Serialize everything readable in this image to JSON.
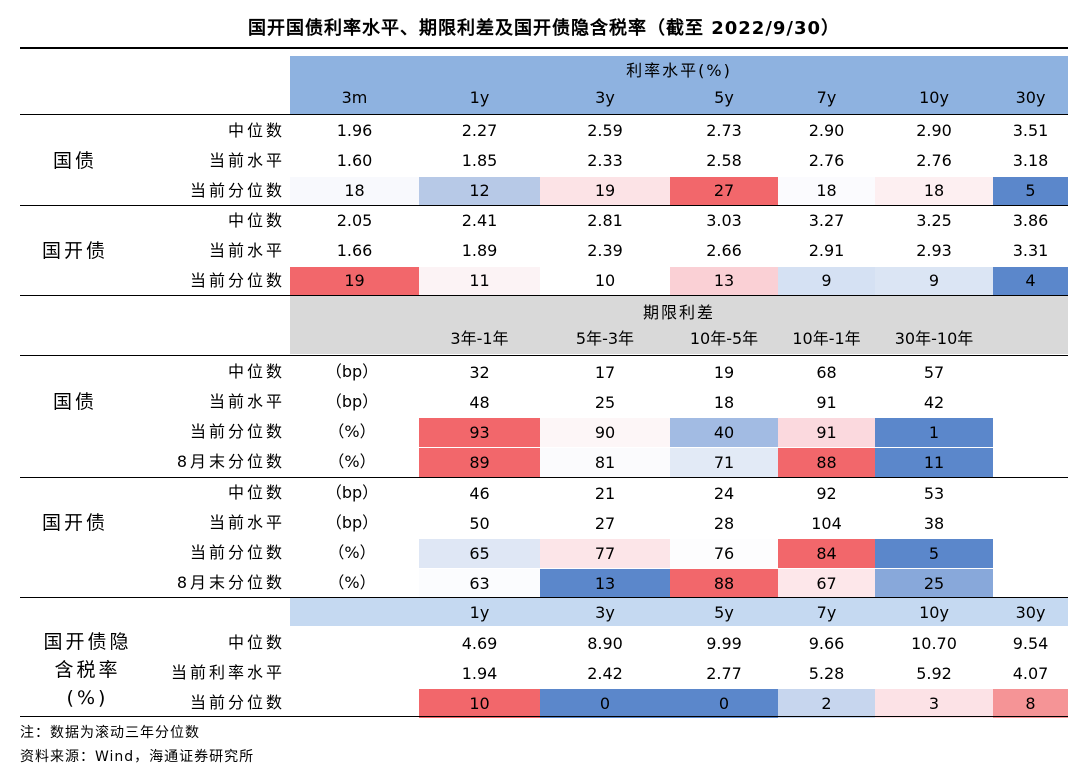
{
  "title": "国开国债利率水平、期限利差及国开债隐含税率（截至 2022/9/30）",
  "colors": {
    "header_blue": "#8eb2e0",
    "header_gray": "#d9d9d9",
    "header_lightblue": "#c5d9f1"
  },
  "section1": {
    "header_title": "利率水平(%)",
    "columns": [
      "3m",
      "1y",
      "3y",
      "5y",
      "7y",
      "10y",
      "30y"
    ],
    "groups": [
      {
        "name": "国债",
        "rows": [
          {
            "label": "中位数",
            "values": [
              "1.96",
              "2.27",
              "2.59",
              "2.73",
              "2.90",
              "2.90",
              "3.51"
            ]
          },
          {
            "label": "当前水平",
            "values": [
              "1.60",
              "1.85",
              "2.33",
              "2.58",
              "2.76",
              "2.76",
              "3.18"
            ]
          },
          {
            "label": "当前分位数",
            "values": [
              "18",
              "12",
              "19",
              "27",
              "18",
              "18",
              "5"
            ],
            "colors": [
              "#f8f9fd",
              "#b7c9e7",
              "#fce3e6",
              "#f2676b",
              "#fbfbfe",
              "#fdeff1",
              "#5b87cb"
            ]
          }
        ]
      },
      {
        "name": "国开债",
        "rows": [
          {
            "label": "中位数",
            "values": [
              "2.05",
              "2.41",
              "2.81",
              "3.03",
              "3.27",
              "3.25",
              "3.86"
            ]
          },
          {
            "label": "当前水平",
            "values": [
              "1.66",
              "1.89",
              "2.39",
              "2.66",
              "2.91",
              "2.93",
              "3.31"
            ]
          },
          {
            "label": "当前分位数",
            "values": [
              "19",
              "11",
              "10",
              "13",
              "9",
              "9",
              "4"
            ],
            "colors": [
              "#f2676b",
              "#fcf3f5",
              "#ffffff",
              "#fad0d5",
              "#d5e1f3",
              "#dbe5f4",
              "#5b87cb"
            ]
          }
        ]
      }
    ]
  },
  "section2": {
    "header_title": "期限利差",
    "columns": [
      "3年-1年",
      "5年-3年",
      "10年-5年",
      "10年-1年",
      "30年-10年"
    ],
    "groups": [
      {
        "name": "国债",
        "rows": [
          {
            "label": "中位数",
            "unit": "（bp）",
            "values": [
              "32",
              "17",
              "19",
              "68",
              "57"
            ]
          },
          {
            "label": "当前水平",
            "unit": "（bp）",
            "values": [
              "48",
              "25",
              "18",
              "91",
              "42"
            ]
          },
          {
            "label": "当前分位数",
            "unit": "（%）",
            "values": [
              "93",
              "90",
              "40",
              "91",
              "1"
            ],
            "colors": [
              "#f2676b",
              "#fdf6f7",
              "#a2bbe3",
              "#fbd9de",
              "#5b87cb"
            ]
          },
          {
            "label": "8月末分位数",
            "unit": "（%）",
            "values": [
              "89",
              "81",
              "71",
              "88",
              "11"
            ],
            "colors": [
              "#f2676b",
              "#fbfbfd",
              "#e2eaf6",
              "#f2676b",
              "#5b87cb"
            ]
          }
        ]
      },
      {
        "name": "国开债",
        "rows": [
          {
            "label": "中位数",
            "unit": "（bp）",
            "values": [
              "46",
              "21",
              "24",
              "92",
              "53"
            ]
          },
          {
            "label": "当前水平",
            "unit": "（bp）",
            "values": [
              "50",
              "27",
              "28",
              "104",
              "38"
            ]
          },
          {
            "label": "当前分位数",
            "unit": "（%）",
            "values": [
              "65",
              "77",
              "76",
              "84",
              "5"
            ],
            "colors": [
              "#dfe7f5",
              "#fce5e8",
              "#fdfdfe",
              "#f2676b",
              "#5b87cb"
            ]
          },
          {
            "label": "8月末分位数",
            "unit": "（%）",
            "values": [
              "63",
              "13",
              "88",
              "67",
              "25"
            ],
            "colors": [
              "#fbfcfe",
              "#5b87cb",
              "#f2676b",
              "#fde7ea",
              "#88a8da"
            ]
          }
        ]
      }
    ]
  },
  "section3": {
    "columns": [
      "1y",
      "3y",
      "5y",
      "7y",
      "10y",
      "30y"
    ],
    "group_lines": [
      "国开债隐",
      "含税率",
      "(%)"
    ],
    "rows": [
      {
        "label": "中位数",
        "values": [
          "4.69",
          "8.90",
          "9.99",
          "9.66",
          "10.70",
          "9.54"
        ]
      },
      {
        "label": "当前利率水平",
        "values": [
          "1.94",
          "2.42",
          "2.77",
          "5.28",
          "5.92",
          "4.07"
        ]
      },
      {
        "label": "当前分位数",
        "values": [
          "10",
          "0",
          "0",
          "2",
          "3",
          "8"
        ],
        "colors": [
          "#f2676b",
          "#5b87cb",
          "#5b87cb",
          "#c7d6ee",
          "#fce2e6",
          "#f59496"
        ]
      }
    ]
  },
  "notes": [
    "注：数据为滚动三年分位数",
    "资料来源：Wind，海通证券研究所"
  ]
}
